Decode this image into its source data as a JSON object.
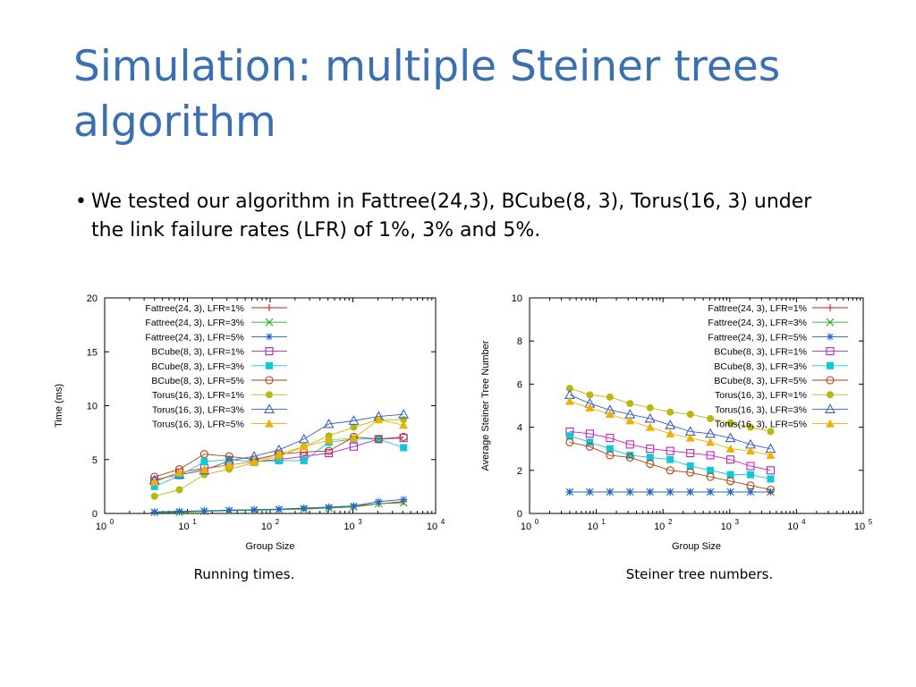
{
  "slide": {
    "title": "Simulation: multiple Steiner trees algorithm",
    "bullet": "We tested our algorithm in Fattree(24,3), BCube(8, 3), Torus(16, 3) under the link failure rates (LFR) of 1%, 3% and 5%."
  },
  "captions": {
    "left": "Running times.",
    "right": "Steiner tree numbers."
  },
  "series_styles": [
    {
      "name": "Fattree(24, 3), LFR=1%",
      "color": "#cc2020",
      "marker": "plus"
    },
    {
      "name": "Fattree(24, 3), LFR=3%",
      "color": "#20b020",
      "marker": "cross"
    },
    {
      "name": "Fattree(24, 3), LFR=5%",
      "color": "#2060e0",
      "marker": "star"
    },
    {
      "name": "BCube(8, 3), LFR=1%",
      "color": "#c020c0",
      "marker": "square-open"
    },
    {
      "name": "BCube(8, 3), LFR=3%",
      "color": "#10c8d8",
      "marker": "square-filled"
    },
    {
      "name": "BCube(8, 3), LFR=5%",
      "color": "#b04010",
      "marker": "circle-open"
    },
    {
      "name": "Torus(16, 3), LFR=1%",
      "color": "#b8b810",
      "marker": "circle-filled"
    },
    {
      "name": "Torus(16, 3), LFR=3%",
      "color": "#3860c0",
      "marker": "triangle-open"
    },
    {
      "name": "Torus(16, 3), LFR=5%",
      "color": "#f0b000",
      "marker": "triangle-filled"
    }
  ],
  "chart_data": [
    {
      "type": "line",
      "xlabel": "Group Size",
      "ylabel": "Time (ms)",
      "xscale": "log",
      "xlim": [
        1,
        10000
      ],
      "ylim": [
        0,
        20
      ],
      "yticks": [
        0,
        5,
        10,
        15,
        20
      ],
      "xticks": [
        1,
        10,
        100,
        1000,
        10000
      ],
      "legend": "top-left",
      "grid": false,
      "x": [
        4,
        8,
        16,
        32,
        64,
        128,
        256,
        512,
        1024,
        2048,
        4096
      ],
      "series": [
        {
          "name": "Fattree(24, 3), LFR=1%",
          "values": [
            0.1,
            0.15,
            0.2,
            0.3,
            0.35,
            0.4,
            0.45,
            0.5,
            0.7,
            0.9,
            1.1
          ]
        },
        {
          "name": "Fattree(24, 3), LFR=3%",
          "values": [
            0.1,
            0.1,
            0.2,
            0.25,
            0.3,
            0.35,
            0.4,
            0.5,
            0.6,
            0.9,
            1.0
          ]
        },
        {
          "name": "Fattree(24, 3), LFR=5%",
          "values": [
            0.15,
            0.2,
            0.25,
            0.3,
            0.35,
            0.4,
            0.5,
            0.6,
            0.7,
            1.1,
            1.3
          ]
        },
        {
          "name": "BCube(8, 3), LFR=1%",
          "values": [
            3.0,
            3.8,
            4.2,
            4.5,
            4.8,
            5.0,
            5.3,
            5.6,
            6.2,
            6.9,
            7.0
          ]
        },
        {
          "name": "BCube(8, 3), LFR=3%",
          "values": [
            2.5,
            3.5,
            4.8,
            5.0,
            4.8,
            4.9,
            4.9,
            6.6,
            6.9,
            6.9,
            6.1
          ]
        },
        {
          "name": "BCube(8, 3), LFR=5%",
          "values": [
            3.4,
            4.1,
            5.5,
            5.3,
            5.0,
            5.5,
            5.7,
            5.8,
            7.1,
            6.9,
            7.1
          ]
        },
        {
          "name": "Torus(16, 3), LFR=1%",
          "values": [
            1.6,
            2.2,
            3.6,
            4.1,
            4.7,
            5.3,
            6.2,
            7.2,
            8.0,
            8.7,
            8.7
          ]
        },
        {
          "name": "Torus(16, 3), LFR=3%",
          "values": [
            3.1,
            3.6,
            4.0,
            4.9,
            5.3,
            5.9,
            6.9,
            8.3,
            8.6,
            9.0,
            9.2
          ]
        },
        {
          "name": "Torus(16, 3), LFR=5%",
          "values": [
            2.9,
            3.8,
            4.1,
            4.5,
            4.8,
            5.5,
            6.2,
            6.8,
            7.0,
            8.7,
            8.2
          ]
        }
      ]
    },
    {
      "type": "line",
      "xlabel": "Group Size",
      "ylabel": "Average Steiner Tree Number",
      "xscale": "log",
      "xlim": [
        1,
        100000
      ],
      "ylim": [
        0,
        10
      ],
      "yticks": [
        0,
        2,
        4,
        6,
        8,
        10
      ],
      "xticks": [
        1,
        10,
        100,
        1000,
        10000,
        100000
      ],
      "legend": "top-right",
      "grid": false,
      "x": [
        4,
        8,
        16,
        32,
        64,
        128,
        256,
        512,
        1024,
        2048,
        4096
      ],
      "series": [
        {
          "name": "Fattree(24, 3), LFR=1%",
          "values": [
            1,
            1,
            1,
            1,
            1,
            1,
            1,
            1,
            1,
            1,
            1
          ]
        },
        {
          "name": "Fattree(24, 3), LFR=3%",
          "values": [
            1,
            1,
            1,
            1,
            1,
            1,
            1,
            1,
            1,
            1,
            1
          ]
        },
        {
          "name": "Fattree(24, 3), LFR=5%",
          "values": [
            1,
            1,
            1,
            1,
            1,
            1,
            1,
            1,
            1,
            1,
            1
          ]
        },
        {
          "name": "BCube(8, 3), LFR=1%",
          "values": [
            3.8,
            3.7,
            3.5,
            3.2,
            3.0,
            2.9,
            2.8,
            2.7,
            2.5,
            2.2,
            2.0
          ]
        },
        {
          "name": "BCube(8, 3), LFR=3%",
          "values": [
            3.6,
            3.3,
            3.0,
            2.7,
            2.6,
            2.5,
            2.2,
            2.0,
            1.8,
            1.8,
            1.6
          ]
        },
        {
          "name": "BCube(8, 3), LFR=5%",
          "values": [
            3.3,
            3.1,
            2.7,
            2.6,
            2.3,
            2.0,
            1.9,
            1.7,
            1.5,
            1.3,
            1.1
          ]
        },
        {
          "name": "Torus(16, 3), LFR=1%",
          "values": [
            5.8,
            5.5,
            5.4,
            5.1,
            4.9,
            4.7,
            4.6,
            4.4,
            4.2,
            4.0,
            3.8
          ]
        },
        {
          "name": "Torus(16, 3), LFR=3%",
          "values": [
            5.5,
            5.1,
            4.8,
            4.6,
            4.4,
            4.1,
            3.8,
            3.7,
            3.5,
            3.2,
            3.0
          ]
        },
        {
          "name": "Torus(16, 3), LFR=5%",
          "values": [
            5.2,
            4.9,
            4.6,
            4.3,
            4.0,
            3.7,
            3.5,
            3.3,
            3.0,
            2.9,
            2.7
          ]
        }
      ]
    }
  ]
}
